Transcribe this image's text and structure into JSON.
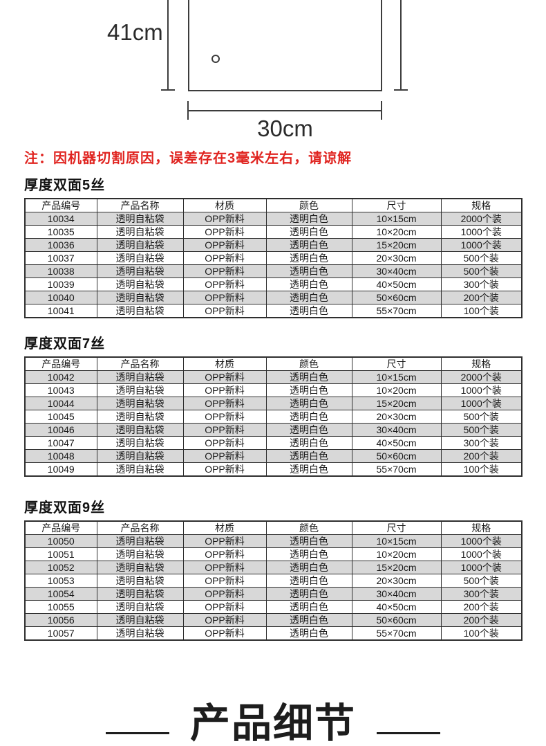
{
  "diagram": {
    "height_label": "41cm",
    "width_label": "30cm"
  },
  "note_text": "注：因机器切割原因，误差存在3毫米左右，请谅解",
  "colors": {
    "note_red": "#e02420",
    "row_shade": "#d8d8d8",
    "table_border": "#2e2e2e",
    "line_dark": "#3c3c3c"
  },
  "tables": [
    {
      "title": "厚度双面5丝",
      "headers": [
        "产品编号",
        "产品名称",
        "材质",
        "颜色",
        "尺寸",
        "规格"
      ],
      "rows": [
        [
          "10034",
          "透明自粘袋",
          "OPP新料",
          "透明白色",
          "10×15cm",
          "2000个装"
        ],
        [
          "10035",
          "透明自粘袋",
          "OPP新料",
          "透明白色",
          "10×20cm",
          "1000个装"
        ],
        [
          "10036",
          "透明自粘袋",
          "OPP新料",
          "透明白色",
          "15×20cm",
          "1000个装"
        ],
        [
          "10037",
          "透明自粘袋",
          "OPP新料",
          "透明白色",
          "20×30cm",
          "500个装"
        ],
        [
          "10038",
          "透明自粘袋",
          "OPP新料",
          "透明白色",
          "30×40cm",
          "500个装"
        ],
        [
          "10039",
          "透明自粘袋",
          "OPP新料",
          "透明白色",
          "40×50cm",
          "300个装"
        ],
        [
          "10040",
          "透明自粘袋",
          "OPP新料",
          "透明白色",
          "50×60cm",
          "200个装"
        ],
        [
          "10041",
          "透明自粘袋",
          "OPP新料",
          "透明白色",
          "55×70cm",
          "100个装"
        ]
      ]
    },
    {
      "title": "厚度双面7丝",
      "headers": [
        "产品编号",
        "产品名称",
        "材质",
        "颜色",
        "尺寸",
        "规格"
      ],
      "rows": [
        [
          "10042",
          "透明自粘袋",
          "OPP新料",
          "透明白色",
          "10×15cm",
          "2000个装"
        ],
        [
          "10043",
          "透明自粘袋",
          "OPP新料",
          "透明白色",
          "10×20cm",
          "1000个装"
        ],
        [
          "10044",
          "透明自粘袋",
          "OPP新料",
          "透明白色",
          "15×20cm",
          "1000个装"
        ],
        [
          "10045",
          "透明自粘袋",
          "OPP新料",
          "透明白色",
          "20×30cm",
          "500个装"
        ],
        [
          "10046",
          "透明自粘袋",
          "OPP新料",
          "透明白色",
          "30×40cm",
          "500个装"
        ],
        [
          "10047",
          "透明自粘袋",
          "OPP新料",
          "透明白色",
          "40×50cm",
          "300个装"
        ],
        [
          "10048",
          "透明自粘袋",
          "OPP新料",
          "透明白色",
          "50×60cm",
          "200个装"
        ],
        [
          "10049",
          "透明自粘袋",
          "OPP新料",
          "透明白色",
          "55×70cm",
          "100个装"
        ]
      ]
    },
    {
      "title": "厚度双面9丝",
      "headers": [
        "产品编号",
        "产品名称",
        "材质",
        "颜色",
        "尺寸",
        "规格"
      ],
      "rows": [
        [
          "10050",
          "透明自粘袋",
          "OPP新料",
          "透明白色",
          "10×15cm",
          "1000个装"
        ],
        [
          "10051",
          "透明自粘袋",
          "OPP新料",
          "透明白色",
          "10×20cm",
          "1000个装"
        ],
        [
          "10052",
          "透明自粘袋",
          "OPP新料",
          "透明白色",
          "15×20cm",
          "1000个装"
        ],
        [
          "10053",
          "透明自粘袋",
          "OPP新料",
          "透明白色",
          "20×30cm",
          "500个装"
        ],
        [
          "10054",
          "透明自粘袋",
          "OPP新料",
          "透明白色",
          "30×40cm",
          "300个装"
        ],
        [
          "10055",
          "透明自粘袋",
          "OPP新料",
          "透明白色",
          "40×50cm",
          "200个装"
        ],
        [
          "10056",
          "透明自粘袋",
          "OPP新料",
          "透明白色",
          "50×60cm",
          "200个装"
        ],
        [
          "10057",
          "透明自粘袋",
          "OPP新料",
          "透明白色",
          "55×70cm",
          "100个装"
        ]
      ]
    }
  ],
  "footer": {
    "title": "产品细节"
  }
}
